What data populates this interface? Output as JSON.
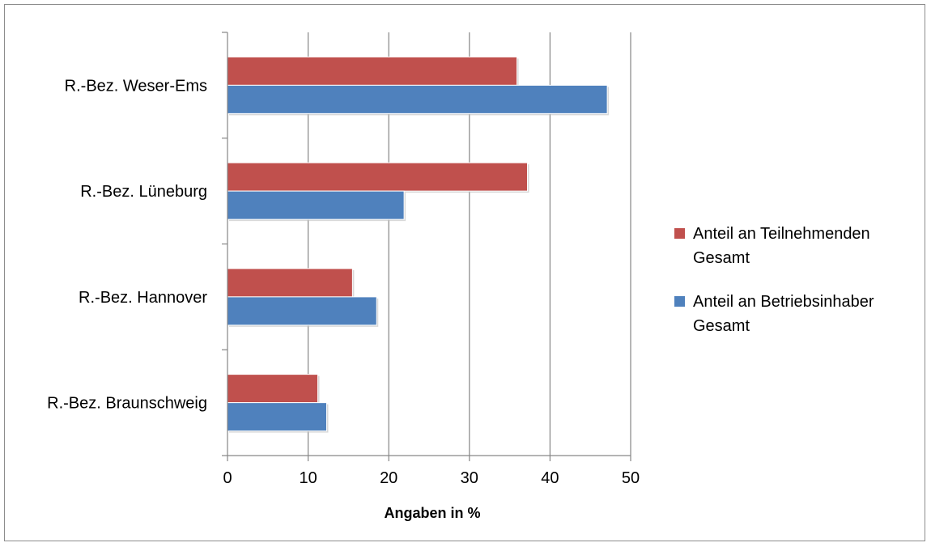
{
  "chart_data": {
    "type": "bar",
    "orientation": "horizontal",
    "categories": [
      "R.-Bez. Braunschweig",
      "R.-Bez. Hannover",
      "R.-Bez. Lüneburg",
      "R.-Bez. Weser-Ems"
    ],
    "series": [
      {
        "name": "Anteil an Teilnehmenden Gesamt",
        "legend_lines": [
          "Anteil an Teilnehmenden",
          "Gesamt"
        ],
        "color": "#c0504d",
        "values": [
          11.2,
          15.5,
          37.2,
          35.9
        ]
      },
      {
        "name": "Anteil an Betriebsinhaber Gesamt",
        "legend_lines": [
          "Anteil an Betriebsinhaber",
          "Gesamt"
        ],
        "color": "#4f81bd",
        "values": [
          12.3,
          18.5,
          21.9,
          47.1
        ]
      }
    ],
    "title": "",
    "xlabel": "Angaben in %",
    "ylabel": "",
    "xlim": [
      0,
      50
    ],
    "xticks": [
      "0",
      "10",
      "20",
      "30",
      "40",
      "50"
    ],
    "grid": "vertical",
    "legend": "right"
  }
}
